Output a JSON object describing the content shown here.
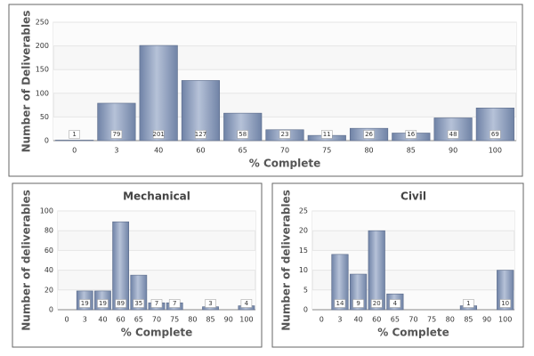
{
  "chart_data": [
    {
      "type": "bar",
      "xlabel": "% Complete",
      "ylabel": "Number of Deliverables",
      "categories": [
        "0",
        "3",
        "40",
        "60",
        "65",
        "70",
        "75",
        "80",
        "85",
        "90",
        "100"
      ],
      "values": [
        1,
        79,
        201,
        127,
        58,
        23,
        11,
        26,
        16,
        48,
        69
      ],
      "color": "#8d9dbb",
      "ylim": [
        0,
        250
      ],
      "yticks": [
        0,
        50,
        100,
        150,
        200,
        250
      ],
      "grid": true
    },
    {
      "type": "bar",
      "title": "Mechanical",
      "xlabel": "% Complete",
      "ylabel": "Number of deliverables",
      "categories": [
        "0",
        "3",
        "40",
        "60",
        "65",
        "70",
        "75",
        "80",
        "85",
        "90",
        "100"
      ],
      "values": [
        null,
        19,
        19,
        89,
        35,
        7,
        7,
        null,
        3,
        null,
        4
      ],
      "color": "#8d9dbb",
      "ylim": [
        0,
        100
      ],
      "yticks": [
        0,
        20,
        40,
        60,
        80,
        100
      ],
      "grid": true
    },
    {
      "type": "bar",
      "title": "Civil",
      "xlabel": "% Complete",
      "ylabel": "Number of deliverables",
      "categories": [
        "0",
        "3",
        "40",
        "60",
        "65",
        "70",
        "75",
        "80",
        "85",
        "90",
        "100"
      ],
      "values": [
        null,
        14,
        9,
        20,
        4,
        null,
        null,
        null,
        1,
        null,
        10
      ],
      "color": "#8d9dbb",
      "ylim": [
        0,
        25
      ],
      "yticks": [
        0,
        5,
        10,
        15,
        20,
        25
      ],
      "grid": true
    }
  ]
}
